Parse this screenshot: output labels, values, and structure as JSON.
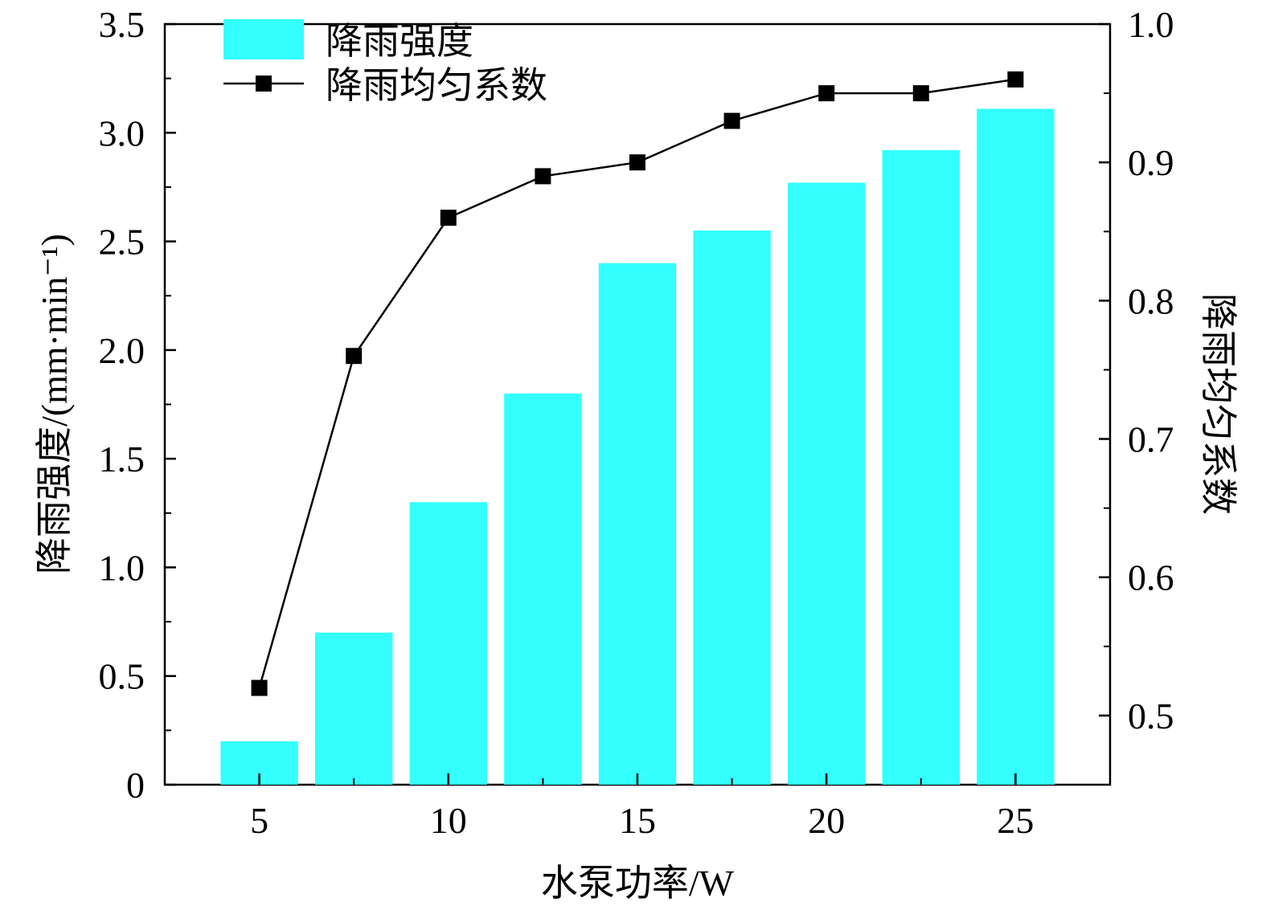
{
  "chart_data": {
    "type": "bar",
    "title": "",
    "x": [
      5,
      7.5,
      10,
      12.5,
      15,
      17.5,
      20,
      22.5,
      25
    ],
    "xlabel": "水泵功率/W",
    "xticks": [
      5,
      10,
      15,
      20,
      25
    ],
    "xlim": [
      2.5,
      27.5
    ],
    "ylabel_left": "降雨强度/(mm·min⁻¹)",
    "ylim_left": [
      0,
      3.5
    ],
    "yticks_left": [
      "0",
      "0.5",
      "1.0",
      "1.5",
      "2.0",
      "2.5",
      "3.0",
      "3.5"
    ],
    "ylabel_right": "降雨均匀系数",
    "ylim_right": [
      0.45,
      1.0
    ],
    "yticks_right": [
      "0.5",
      "0.6",
      "0.7",
      "0.8",
      "0.9",
      "1.0"
    ],
    "series": [
      {
        "name": "降雨强度",
        "type": "bar",
        "axis": "left",
        "color": "#33FFFF",
        "values": [
          0.2,
          0.7,
          1.3,
          1.8,
          2.4,
          2.55,
          2.77,
          2.92,
          3.11
        ]
      },
      {
        "name": "降雨均匀系数",
        "type": "line",
        "marker": "square",
        "axis": "right",
        "color": "#000000",
        "values": [
          0.52,
          0.76,
          0.86,
          0.89,
          0.9,
          0.93,
          0.95,
          0.95,
          0.96
        ]
      }
    ],
    "legend_position": "top-left",
    "grid": false
  }
}
